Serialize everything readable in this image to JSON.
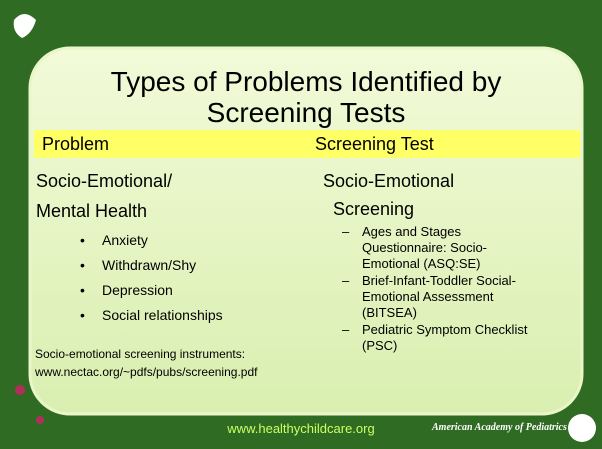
{
  "title": [
    "Types of Problems Identified by",
    "Screening Tests"
  ],
  "header": {
    "left": "Problem",
    "right": "Screening Test"
  },
  "left": {
    "heading": [
      "Socio-Emotional/",
      "Mental Health"
    ],
    "bullets": [
      "Anxiety",
      "Withdrawn/Shy",
      "Depression",
      "Social relationships"
    ],
    "note": [
      "Socio-emotional screening instruments:",
      "www.nectac.org/~pdfs/pubs/screening.pdf"
    ]
  },
  "right": {
    "heading": [
      "Socio-Emotional",
      "Screening"
    ],
    "items": [
      [
        "Ages and Stages",
        "Questionnaire: Socio-",
        "Emotional (ASQ:SE)"
      ],
      [
        "Brief-Infant-Toddler Social-",
        "Emotional Assessment",
        "(BITSEA)"
      ],
      [
        "Pediatric Symptom Checklist",
        "(PSC)"
      ]
    ]
  },
  "footer": {
    "url": "www.healthychildcare.org",
    "logo": "American Academy of Pediatrics"
  }
}
